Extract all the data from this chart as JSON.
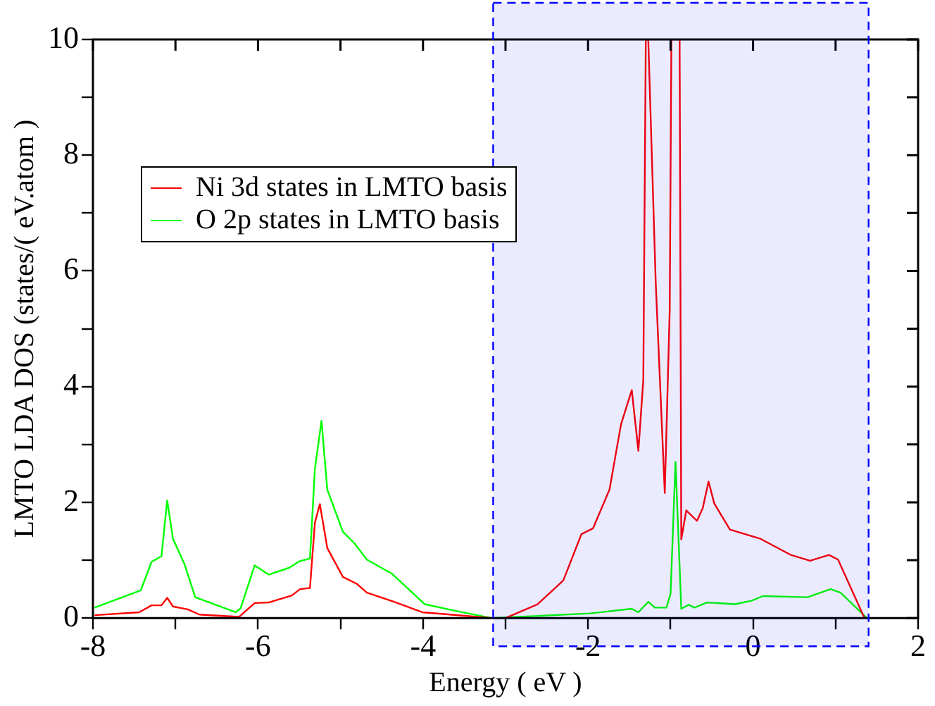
{
  "chart_data": {
    "type": "line",
    "xlabel": "Energy ( eV )",
    "ylabel": "LMTO LDA DOS (states/( eV.atom )",
    "xlim": [
      -8,
      2
    ],
    "ylim": [
      0,
      10
    ],
    "xticks": [
      -8,
      {
        "value": -7,
        "label": null
      },
      -6,
      {
        "value": -5,
        "label": null
      },
      -4,
      {
        "value": -3,
        "label": null
      },
      -2,
      {
        "value": -1,
        "label": null
      },
      0,
      {
        "value": 1,
        "label": null
      },
      2
    ],
    "yticks": [
      0,
      {
        "value": 1,
        "label": null
      },
      2,
      {
        "value": 3,
        "label": null
      },
      4,
      {
        "value": 5,
        "label": null
      },
      6,
      {
        "value": 7,
        "label": null
      },
      8,
      {
        "value": 9,
        "label": null
      },
      10
    ],
    "grid": false,
    "legend": "top left",
    "marker": "none",
    "line_style": "solid",
    "bands": [
      {
        "axis": "x",
        "from": -3.15,
        "to": 1.4,
        "label": null,
        "color": "#0000ff"
      }
    ],
    "series": [
      {
        "name": "Ni 3d states in LMTO basis",
        "color": "#ff0000",
        "x": [
          -7.98,
          -7.44,
          -7.29,
          -7.17,
          -7.1,
          -7.03,
          -6.85,
          -6.71,
          -6.23,
          -6.04,
          -5.87,
          -5.59,
          -5.49,
          -5.37,
          -5.31,
          -5.25,
          -5.16,
          -4.97,
          -4.8,
          -4.68,
          -4.35,
          -4.01,
          -3.67,
          -3.17,
          -3.0,
          -2.61,
          -2.3,
          -2.08,
          -1.94,
          -1.74,
          -1.6,
          -1.47,
          -1.39,
          -1.33,
          -1.3,
          -1.27,
          -1.18,
          -1.07,
          -1.01,
          -0.99,
          -0.89,
          -0.87,
          -0.81,
          -0.68,
          -0.61,
          -0.54,
          -0.47,
          -0.28,
          0.09,
          0.46,
          0.69,
          0.92,
          1.03,
          1.35
        ],
        "values": [
          0.05,
          0.1,
          0.22,
          0.22,
          0.35,
          0.2,
          0.15,
          0.06,
          0.02,
          0.26,
          0.27,
          0.39,
          0.5,
          0.52,
          1.65,
          1.97,
          1.21,
          0.71,
          0.59,
          0.44,
          0.28,
          0.1,
          0.06,
          0.0,
          0.0,
          0.24,
          0.65,
          1.45,
          1.55,
          2.22,
          3.35,
          3.94,
          2.89,
          4.12,
          10,
          10,
          5.81,
          2.16,
          5.33,
          10,
          10,
          1.36,
          1.86,
          1.68,
          1.9,
          2.36,
          1.98,
          1.53,
          1.37,
          1.09,
          0.99,
          1.09,
          1.01,
          0.0
        ]
      },
      {
        "name": "O 2p states in LMTO basis",
        "color": "#00ff00",
        "x": [
          -7.98,
          -7.42,
          -7.29,
          -7.17,
          -7.1,
          -7.03,
          -6.89,
          -6.76,
          -6.27,
          -6.21,
          -6.04,
          -5.87,
          -5.62,
          -5.5,
          -5.37,
          -5.31,
          -5.23,
          -5.16,
          -4.97,
          -4.83,
          -4.68,
          -4.38,
          -3.98,
          -3.59,
          -3.17,
          -1.98,
          -1.47,
          -1.39,
          -1.27,
          -1.19,
          -1.05,
          -1.0,
          -0.94,
          -0.87,
          -0.78,
          -0.71,
          -0.56,
          -0.22,
          -0.02,
          0.12,
          0.66,
          0.94,
          1.06,
          1.38
        ],
        "values": [
          0.18,
          0.48,
          0.97,
          1.07,
          2.03,
          1.37,
          0.93,
          0.36,
          0.1,
          0.17,
          0.91,
          0.75,
          0.87,
          0.98,
          1.03,
          2.58,
          3.41,
          2.22,
          1.49,
          1.29,
          1.01,
          0.77,
          0.24,
          0.12,
          0.0,
          0.08,
          0.16,
          0.1,
          0.28,
          0.18,
          0.18,
          0.42,
          2.7,
          0.16,
          0.23,
          0.18,
          0.27,
          0.24,
          0.3,
          0.38,
          0.36,
          0.5,
          0.44,
          0.0
        ]
      }
    ]
  }
}
